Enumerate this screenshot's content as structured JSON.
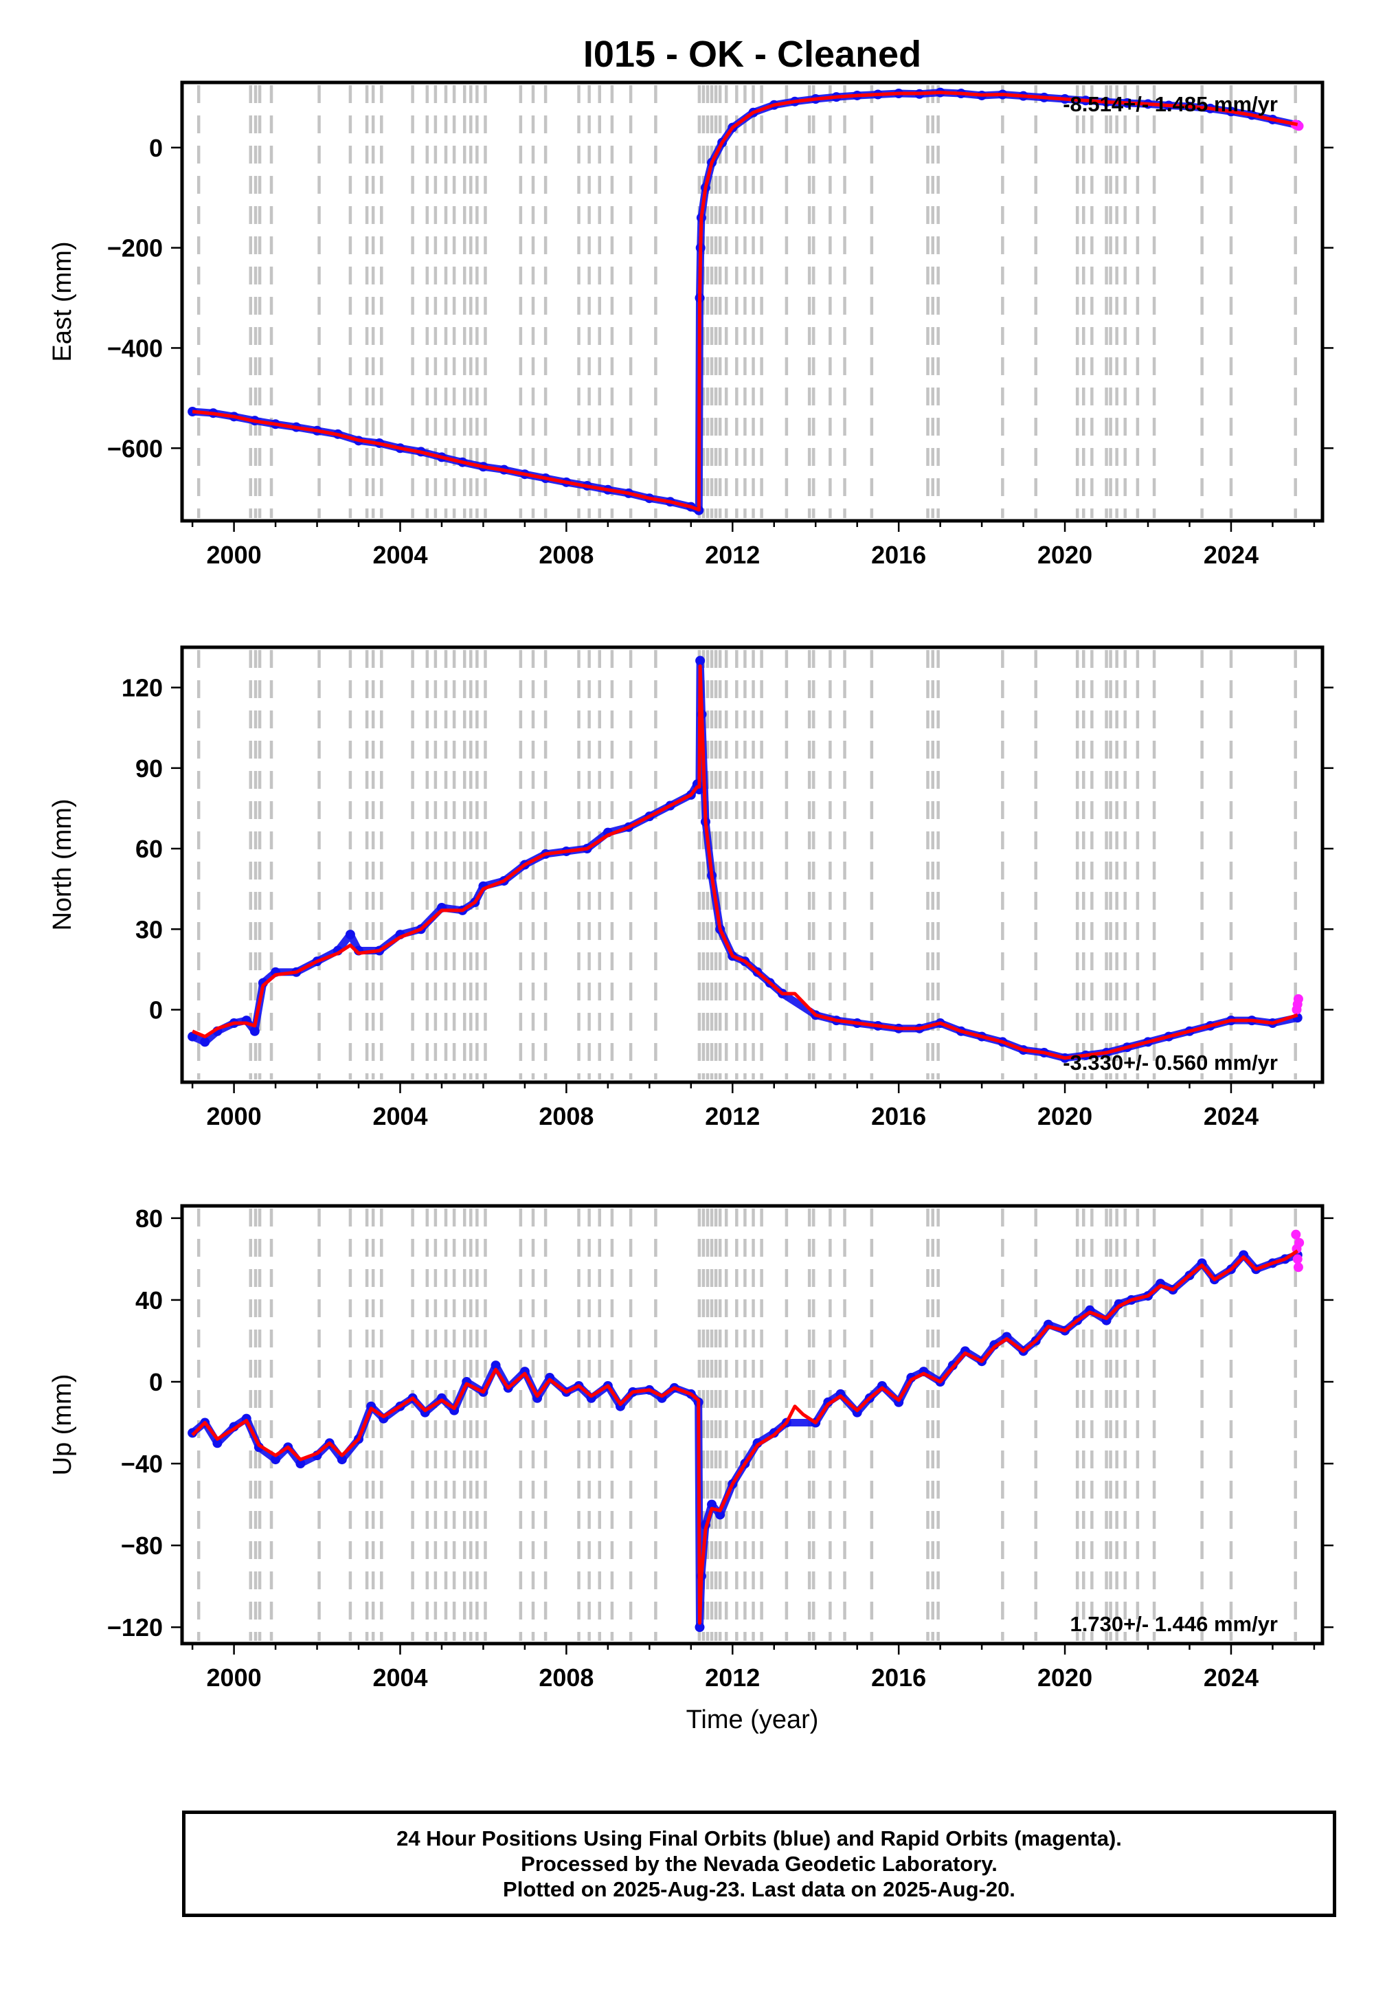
{
  "title": "I015  - OK - Cleaned",
  "x_axis": {
    "label": "Time (year)",
    "ticks": [
      "2000",
      "2004",
      "2008",
      "2012",
      "2016",
      "2020",
      "2024"
    ],
    "range": [
      1998.75,
      2026.2
    ]
  },
  "colors": {
    "final_orbits": "#1010ee",
    "rapid_orbits": "#ff22ff",
    "model": "#ff0000",
    "event_lines": "#c4c4c4"
  },
  "caption": {
    "line1": "24 Hour Positions Using Final Orbits (blue) and Rapid Orbits (magenta).",
    "line2": "Processed by the Nevada Geodetic Laboratory.",
    "line3": "Plotted on 2025-Aug-23. Last data on 2025-Aug-20."
  },
  "event_lines": [
    1999.15,
    2000.4,
    2000.52,
    2000.62,
    2000.9,
    2002.05,
    2002.8,
    2003.2,
    2003.35,
    2003.55,
    2004.3,
    2004.65,
    2004.85,
    2005.1,
    2005.3,
    2005.55,
    2005.7,
    2005.85,
    2006.05,
    2006.9,
    2007.2,
    2007.5,
    2008.3,
    2008.55,
    2008.8,
    2009.1,
    2009.55,
    2010.15,
    2011.2,
    2011.3,
    2011.4,
    2011.5,
    2011.6,
    2011.7,
    2011.85,
    2012.1,
    2012.3,
    2012.5,
    2012.7,
    2013.3,
    2013.85,
    2013.95,
    2014.35,
    2014.7,
    2015.35,
    2016.7,
    2016.82,
    2016.95,
    2018.5,
    2019.3,
    2020.3,
    2020.45,
    2020.65,
    2021.0,
    2021.1,
    2021.25,
    2021.45,
    2021.75,
    2022.15,
    2023.3,
    2024.0,
    2025.55
  ],
  "chart_data": [
    {
      "type": "scatter",
      "panel": "east",
      "ylabel": "East (mm)",
      "ylim": [
        -745,
        130
      ],
      "yticks": [
        "0",
        "−200",
        "−400",
        "−600"
      ],
      "ytick_values": [
        0,
        -200,
        -400,
        -600
      ],
      "rate": "-8.514+/- 1.485 mm/yr",
      "rate_position": "top-right",
      "x": [
        1999.0,
        1999.5,
        2000.0,
        2000.5,
        2001.0,
        2001.5,
        2002.0,
        2002.5,
        2003.0,
        2003.5,
        2004.0,
        2004.5,
        2005.0,
        2005.5,
        2006.0,
        2006.5,
        2007.0,
        2007.5,
        2008.0,
        2008.5,
        2009.0,
        2009.5,
        2010.0,
        2010.5,
        2011.0,
        2011.19,
        2011.21,
        2011.23,
        2011.25,
        2011.35,
        2011.5,
        2011.75,
        2012.0,
        2012.5,
        2013.0,
        2013.5,
        2014.0,
        2014.5,
        2015.0,
        2015.5,
        2016.0,
        2016.5,
        2017.0,
        2017.5,
        2018.0,
        2018.5,
        2019.0,
        2019.5,
        2020.0,
        2020.5,
        2021.0,
        2021.5,
        2022.0,
        2022.5,
        2023.0,
        2023.5,
        2024.0,
        2024.5,
        2025.0,
        2025.6
      ],
      "final": [
        -527,
        -530,
        -537,
        -545,
        -552,
        -558,
        -565,
        -572,
        -585,
        -590,
        -600,
        -607,
        -618,
        -628,
        -637,
        -643,
        -652,
        -660,
        -668,
        -675,
        -683,
        -690,
        -700,
        -707,
        -717,
        -724,
        -300,
        -200,
        -140,
        -80,
        -30,
        10,
        40,
        70,
        85,
        92,
        97,
        101,
        104,
        106,
        108,
        107,
        110,
        108,
        104,
        106,
        103,
        100,
        97,
        94,
        91,
        89,
        87,
        84,
        82,
        78,
        72,
        65,
        56,
        45
      ],
      "rapid_x": [
        2025.55,
        2025.6,
        2025.63
      ],
      "rapid": [
        46,
        44,
        43
      ],
      "model_x": [
        1999.0,
        1999.5,
        2000.0,
        2000.5,
        2001.0,
        2001.5,
        2002.0,
        2002.5,
        2003.0,
        2003.5,
        2004.0,
        2004.5,
        2005.0,
        2005.5,
        2006.0,
        2006.5,
        2007.0,
        2007.5,
        2008.0,
        2008.5,
        2009.0,
        2009.5,
        2010.0,
        2010.5,
        2011.0,
        2011.19,
        2011.21,
        2011.23,
        2011.25,
        2011.35,
        2011.5,
        2011.75,
        2012.0,
        2012.5,
        2013.0,
        2013.5,
        2014.0,
        2014.5,
        2015.0,
        2015.5,
        2016.0,
        2016.5,
        2017.0,
        2017.5,
        2018.0,
        2018.5,
        2019.0,
        2019.5,
        2020.0,
        2020.5,
        2021.0,
        2021.5,
        2022.0,
        2022.5,
        2023.0,
        2023.5,
        2024.0,
        2024.5,
        2025.0,
        2025.6
      ],
      "model": [
        -527,
        -531,
        -537,
        -546,
        -552,
        -559,
        -565,
        -573,
        -584,
        -591,
        -600,
        -608,
        -618,
        -628,
        -637,
        -644,
        -652,
        -660,
        -668,
        -676,
        -683,
        -690,
        -700,
        -707,
        -717,
        -723,
        -300,
        -200,
        -140,
        -80,
        -30,
        10,
        40,
        70,
        85,
        92,
        97,
        101,
        104,
        106,
        108,
        108,
        110,
        108,
        105,
        106,
        103,
        100,
        97,
        94,
        91,
        89,
        87,
        84,
        82,
        78,
        72,
        65,
        56,
        46
      ]
    },
    {
      "type": "scatter",
      "panel": "north",
      "ylabel": "North (mm)",
      "ylim": [
        -27,
        135
      ],
      "yticks": [
        "120",
        "90",
        "60",
        "30",
        "0"
      ],
      "ytick_values": [
        120,
        90,
        60,
        30,
        0
      ],
      "rate": "-3.330+/- 0.560 mm/yr",
      "rate_position": "bottom-right",
      "x": [
        1999.0,
        1999.3,
        1999.6,
        2000.0,
        2000.3,
        2000.5,
        2000.7,
        2001.0,
        2001.5,
        2002.0,
        2002.5,
        2002.8,
        2003.0,
        2003.5,
        2004.0,
        2004.5,
        2005.0,
        2005.5,
        2005.8,
        2006.0,
        2006.5,
        2007.0,
        2007.5,
        2008.0,
        2008.5,
        2009.0,
        2009.5,
        2010.0,
        2010.5,
        2011.0,
        2011.15,
        2011.2,
        2011.22,
        2011.26,
        2011.35,
        2011.5,
        2011.7,
        2012.0,
        2012.3,
        2012.6,
        2012.9,
        2013.2,
        2014.0,
        2014.5,
        2015.0,
        2015.5,
        2016.0,
        2016.5,
        2017.0,
        2017.5,
        2018.0,
        2018.5,
        2019.0,
        2019.5,
        2020.0,
        2020.5,
        2021.0,
        2021.5,
        2022.0,
        2022.5,
        2023.0,
        2023.5,
        2024.0,
        2024.5,
        2025.0,
        2025.6
      ],
      "final": [
        -10,
        -12,
        -8,
        -5,
        -4,
        -8,
        10,
        14,
        14,
        18,
        22,
        28,
        22,
        22,
        28,
        30,
        38,
        37,
        40,
        46,
        48,
        54,
        58,
        59,
        60,
        66,
        68,
        72,
        76,
        80,
        84,
        82,
        130,
        110,
        70,
        50,
        30,
        20,
        18,
        14,
        10,
        6,
        -2,
        -4,
        -5,
        -6,
        -7,
        -7,
        -5,
        -8,
        -10,
        -12,
        -15,
        -16,
        -18,
        -17,
        -16,
        -14,
        -12,
        -10,
        -8,
        -6,
        -4,
        -4,
        -5,
        -3
      ],
      "rapid_x": [
        2025.58,
        2025.6,
        2025.62
      ],
      "rapid": [
        0,
        2,
        4
      ],
      "model_x": [
        1999.0,
        1999.3,
        1999.6,
        2000.0,
        2000.3,
        2000.5,
        2000.7,
        2001.0,
        2001.5,
        2002.0,
        2002.5,
        2002.8,
        2003.0,
        2003.5,
        2004.0,
        2004.5,
        2005.0,
        2005.5,
        2005.8,
        2006.0,
        2006.5,
        2007.0,
        2007.5,
        2008.0,
        2008.5,
        2009.0,
        2009.5,
        2010.0,
        2010.5,
        2011.0,
        2011.15,
        2011.2,
        2011.22,
        2011.26,
        2011.35,
        2011.5,
        2011.7,
        2012.0,
        2012.3,
        2012.6,
        2012.9,
        2013.2,
        2013.5,
        2014.0,
        2014.5,
        2015.0,
        2015.5,
        2016.0,
        2016.5,
        2017.0,
        2017.5,
        2018.0,
        2018.5,
        2019.0,
        2019.5,
        2020.0,
        2020.5,
        2021.0,
        2021.5,
        2022.0,
        2022.5,
        2023.0,
        2023.5,
        2024.0,
        2024.5,
        2025.0,
        2025.6
      ],
      "model": [
        -8,
        -10,
        -7,
        -5,
        -5,
        -6,
        9,
        13,
        14,
        18,
        21,
        24,
        21,
        22,
        27,
        30,
        37,
        37,
        40,
        45,
        48,
        54,
        58,
        59,
        60,
        65,
        68,
        72,
        76,
        80,
        83,
        83,
        128,
        110,
        70,
        50,
        30,
        20,
        18,
        14,
        10,
        6,
        6,
        -2,
        -4,
        -5,
        -6,
        -7,
        -7,
        -5,
        -8,
        -10,
        -12,
        -15,
        -16,
        -18,
        -17,
        -16,
        -14,
        -12,
        -10,
        -8,
        -6,
        -4,
        -4,
        -5,
        -2
      ]
    },
    {
      "type": "scatter",
      "panel": "up",
      "ylabel": "Up (mm)",
      "ylim": [
        -128,
        86
      ],
      "yticks": [
        "80",
        "40",
        "0",
        "−40",
        "−80",
        "−120"
      ],
      "ytick_values": [
        80,
        40,
        0,
        -40,
        -80,
        -120
      ],
      "rate": "1.730+/- 1.446 mm/yr",
      "rate_position": "bottom-right",
      "x": [
        1999.0,
        1999.3,
        1999.6,
        2000.0,
        2000.3,
        2000.6,
        2001.0,
        2001.3,
        2001.6,
        2002.0,
        2002.3,
        2002.6,
        2003.0,
        2003.3,
        2003.6,
        2004.0,
        2004.3,
        2004.6,
        2005.0,
        2005.3,
        2005.6,
        2006.0,
        2006.3,
        2006.6,
        2007.0,
        2007.3,
        2007.6,
        2008.0,
        2008.3,
        2008.6,
        2009.0,
        2009.3,
        2009.6,
        2010.0,
        2010.3,
        2010.6,
        2011.0,
        2011.18,
        2011.21,
        2011.25,
        2011.35,
        2011.5,
        2011.7,
        2012.0,
        2012.3,
        2012.6,
        2013.0,
        2013.3,
        2014.0,
        2014.3,
        2014.6,
        2015.0,
        2015.3,
        2015.6,
        2016.0,
        2016.3,
        2016.6,
        2017.0,
        2017.3,
        2017.6,
        2018.0,
        2018.3,
        2018.6,
        2019.0,
        2019.3,
        2019.6,
        2020.0,
        2020.3,
        2020.6,
        2021.0,
        2021.3,
        2021.6,
        2022.0,
        2022.3,
        2022.6,
        2023.0,
        2023.3,
        2023.6,
        2024.0,
        2024.3,
        2024.6,
        2025.0,
        2025.3,
        2025.6
      ],
      "final": [
        -25,
        -20,
        -30,
        -22,
        -18,
        -32,
        -38,
        -32,
        -40,
        -36,
        -30,
        -38,
        -28,
        -12,
        -18,
        -12,
        -8,
        -15,
        -8,
        -14,
        0,
        -5,
        8,
        -3,
        5,
        -8,
        2,
        -5,
        -2,
        -8,
        -2,
        -12,
        -5,
        -4,
        -8,
        -3,
        -6,
        -10,
        -120,
        -95,
        -70,
        -60,
        -65,
        -50,
        -40,
        -30,
        -25,
        -20,
        -20,
        -10,
        -6,
        -15,
        -8,
        -2,
        -10,
        2,
        5,
        0,
        8,
        15,
        10,
        18,
        22,
        15,
        20,
        28,
        25,
        30,
        35,
        30,
        38,
        40,
        42,
        48,
        45,
        52,
        58,
        50,
        55,
        62,
        55,
        58,
        60,
        62
      ],
      "rapid_x": [
        2025.56,
        2025.58,
        2025.6,
        2025.62,
        2025.64
      ],
      "rapid": [
        72,
        65,
        60,
        56,
        68
      ],
      "model_x": [
        1999.0,
        1999.3,
        1999.6,
        2000.0,
        2000.3,
        2000.6,
        2001.0,
        2001.3,
        2001.6,
        2002.0,
        2002.3,
        2002.6,
        2003.0,
        2003.3,
        2003.6,
        2004.0,
        2004.3,
        2004.6,
        2005.0,
        2005.3,
        2005.6,
        2006.0,
        2006.3,
        2006.6,
        2007.0,
        2007.3,
        2007.6,
        2008.0,
        2008.3,
        2008.6,
        2009.0,
        2009.3,
        2009.6,
        2010.0,
        2010.3,
        2010.6,
        2011.0,
        2011.18,
        2011.21,
        2011.25,
        2011.35,
        2011.5,
        2011.7,
        2012.0,
        2012.3,
        2012.6,
        2013.0,
        2013.3,
        2013.5,
        2013.7,
        2014.0,
        2014.3,
        2014.6,
        2015.0,
        2015.3,
        2015.6,
        2016.0,
        2016.3,
        2016.6,
        2017.0,
        2017.3,
        2017.6,
        2018.0,
        2018.3,
        2018.6,
        2019.0,
        2019.3,
        2019.6,
        2020.0,
        2020.3,
        2020.6,
        2021.0,
        2021.3,
        2021.6,
        2022.0,
        2022.3,
        2022.6,
        2023.0,
        2023.3,
        2023.6,
        2024.0,
        2024.3,
        2024.6,
        2025.0,
        2025.3,
        2025.6
      ],
      "model": [
        -26,
        -20,
        -28,
        -23,
        -19,
        -31,
        -36,
        -32,
        -38,
        -35,
        -30,
        -36,
        -28,
        -13,
        -17,
        -12,
        -8,
        -14,
        -9,
        -13,
        -1,
        -5,
        6,
        -3,
        4,
        -7,
        1,
        -5,
        -2,
        -7,
        -2,
        -11,
        -5,
        -4,
        -7,
        -3,
        -6,
        -9,
        -118,
        -95,
        -72,
        -62,
        -63,
        -50,
        -40,
        -31,
        -26,
        -20,
        -12,
        -16,
        -20,
        -11,
        -7,
        -14,
        -8,
        -3,
        -9,
        1,
        4,
        0,
        7,
        14,
        10,
        17,
        21,
        15,
        20,
        27,
        25,
        30,
        34,
        31,
        37,
        40,
        42,
        47,
        45,
        52,
        57,
        50,
        55,
        61,
        55,
        58,
        60,
        64
      ]
    }
  ]
}
